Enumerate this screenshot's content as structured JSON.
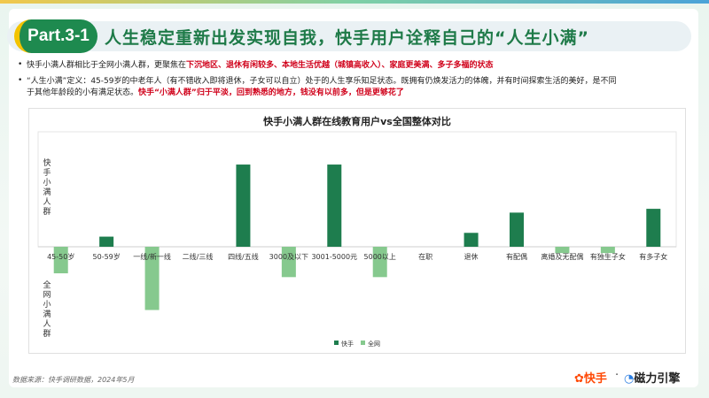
{
  "header": {
    "badge": "Part.3-1",
    "title": "人生稳定重新出发实现自我，快手用户诠释自己的“人生小满”"
  },
  "bullets": {
    "b1_plain": "快手小满人群相比于全网小满人群，更聚焦在",
    "b1_red": "下沉地区、退休有闲较多、本地生活优越（城镇高收入）、家庭更美满、多子多福的状态",
    "b2_plain": "“人生小满”定义：45-59岁的中老年人（有不错收入即将退休，子女可以自立）处于的人生享乐知足状态。既拥有仍焕发活力的体魄，并有时间探索生活的美好，是不同",
    "b3_plain": "于其他年龄段的小有满足状态。",
    "b3_red": "快手“小满人群”归于平淡，回到熟悉的地方，钱没有以前多，但是更够花了"
  },
  "footer": {
    "source": "数据来源：快手调研数据，2024年5月",
    "logo_kuaishou": "快手",
    "logo_cili": "磁力引擎"
  },
  "colors": {
    "kuaishou": "#1e7d4e",
    "quanwang": "#86c98e",
    "brand_green": "#1e8a4f",
    "highlight_red": "#d0021b"
  },
  "chart_data": {
    "type": "bar",
    "title": "快手小满人群在线教育用户vs全国整体对比",
    "upper_axis_label": "快手小满人群",
    "lower_axis_label": "全网小满人群",
    "categories": [
      "45-50岁",
      "50-59岁",
      "一线/新一线",
      "二线/三线",
      "四线/五线",
      "3000及以下",
      "3001-5000元",
      "5000以上",
      "在职",
      "退休",
      "有配偶",
      "离婚及无配偶",
      "有独生子女",
      "有多子女"
    ],
    "series": [
      {
        "name": "快手",
        "values": [
          0,
          8,
          0,
          0,
          65,
          0,
          65,
          0,
          0,
          11,
          27,
          0,
          0,
          30
        ]
      },
      {
        "name": "全网",
        "values": [
          -21,
          0,
          -50,
          0,
          0,
          -24,
          0,
          -24,
          0,
          0,
          0,
          -5,
          -5,
          0
        ]
      }
    ],
    "ylim": [
      -55,
      70
    ],
    "legend": [
      "快手",
      "全网"
    ],
    "legend_position": "bottom-center",
    "grid": false
  }
}
